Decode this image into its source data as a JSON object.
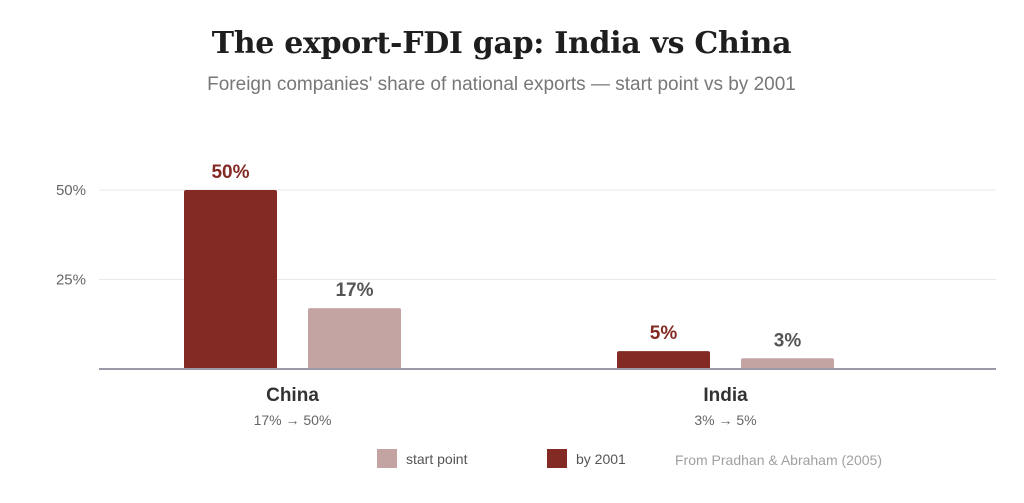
{
  "title": "The export-FDI gap: India vs China",
  "subtitle": "Foreign companies' share of national exports — start point vs by 2001",
  "source": "From Pradhan & Abraham (2005)",
  "colors": {
    "start": "#c4a3a3",
    "by2001": "#842a25",
    "start_label": "#555555",
    "by2001_label": "#842a25"
  },
  "chart_data": {
    "type": "bar",
    "categories": [
      "China",
      "India"
    ],
    "category_notes": [
      "17% → 50%",
      "3% → 5%"
    ],
    "series": [
      {
        "name": "by 2001",
        "values": [
          50,
          5
        ],
        "labels": [
          "50%",
          "5%"
        ]
      },
      {
        "name": "start point",
        "values": [
          17,
          3
        ],
        "labels": [
          "17%",
          "3%"
        ]
      }
    ],
    "y_ticks": [
      {
        "value": 25,
        "label": "25%"
      },
      {
        "value": 50,
        "label": "50%"
      }
    ],
    "ylim": [
      0,
      50
    ],
    "grid": true,
    "legend": [
      {
        "label": "start point",
        "series": "start point"
      },
      {
        "label": "by 2001",
        "series": "by 2001"
      }
    ],
    "legend_position": "bottom"
  }
}
